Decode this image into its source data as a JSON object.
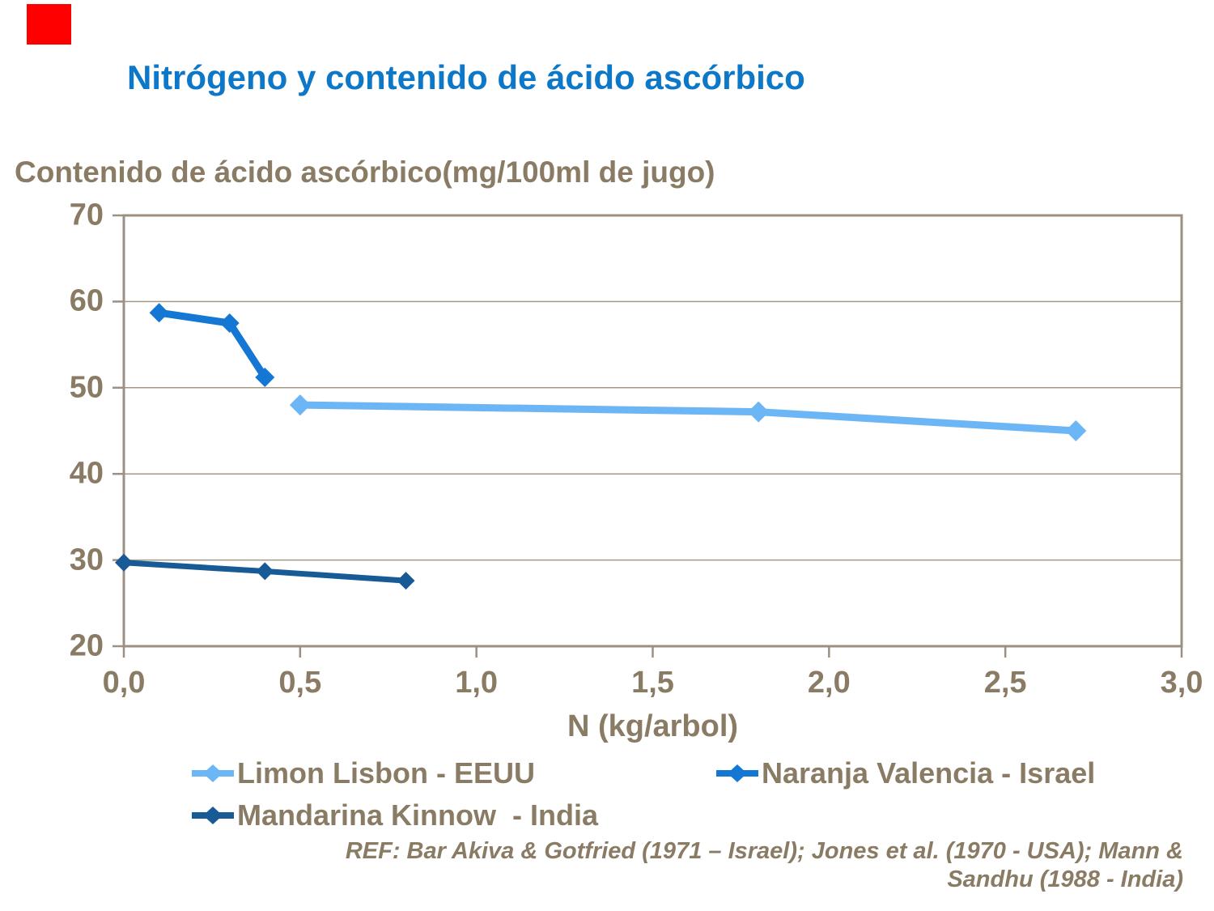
{
  "slide": {
    "accent_red": "#fe0000",
    "title_color": "#0d77c8",
    "text_brown": "#8a7b64",
    "axis_color": "#9c9082",
    "grid_color": "#a39888"
  },
  "chart_data": {
    "type": "line",
    "title": "Nitrógeno y contenido de ácido ascórbico",
    "y_axis_title": "Contenido de ácido ascórbico(mg/100ml de jugo)",
    "xlabel": "N (kg/arbol)",
    "xlim": [
      0.0,
      3.0
    ],
    "ylim": [
      20,
      70
    ],
    "grid": true,
    "legend_position": "bottom",
    "x_ticks": [
      {
        "value": 0.0,
        "label": "0,0"
      },
      {
        "value": 0.5,
        "label": "0,5"
      },
      {
        "value": 1.0,
        "label": "1,0"
      },
      {
        "value": 1.5,
        "label": "1,5"
      },
      {
        "value": 2.0,
        "label": "2,0"
      },
      {
        "value": 2.5,
        "label": "2,5"
      },
      {
        "value": 3.0,
        "label": "3,0"
      }
    ],
    "y_ticks": [
      {
        "value": 20,
        "label": "20"
      },
      {
        "value": 30,
        "label": "30"
      },
      {
        "value": 40,
        "label": "40"
      },
      {
        "value": 50,
        "label": "50"
      },
      {
        "value": 60,
        "label": "60"
      },
      {
        "value": 70,
        "label": "70"
      }
    ],
    "series": [
      {
        "name": "Limon Lisbon - EEUU",
        "color": "#6db6f5",
        "line_width": 9,
        "marker_size": 13,
        "points": [
          [
            0.5,
            48.0
          ],
          [
            1.8,
            47.2
          ],
          [
            2.7,
            45.0
          ]
        ]
      },
      {
        "name": "Naranja Valencia - Israel",
        "color": "#1377d3",
        "line_width": 9,
        "marker_size": 12,
        "points": [
          [
            0.1,
            58.7
          ],
          [
            0.3,
            57.5
          ],
          [
            0.4,
            51.2
          ]
        ]
      },
      {
        "name": "Mandarina Kinnow  - India",
        "color": "#175a96",
        "line_width": 7,
        "marker_size": 11,
        "points": [
          [
            0.0,
            29.7
          ],
          [
            0.4,
            28.7
          ],
          [
            0.8,
            27.6
          ]
        ]
      }
    ],
    "legend_rows": [
      [
        0,
        1
      ],
      [
        2
      ]
    ],
    "footnote_lines": [
      "REF: Bar Akiva & Gotfried (1971 – Israel); Jones et al. (1970 - USA); Mann &",
      "Sandhu (1988 - India)"
    ]
  }
}
